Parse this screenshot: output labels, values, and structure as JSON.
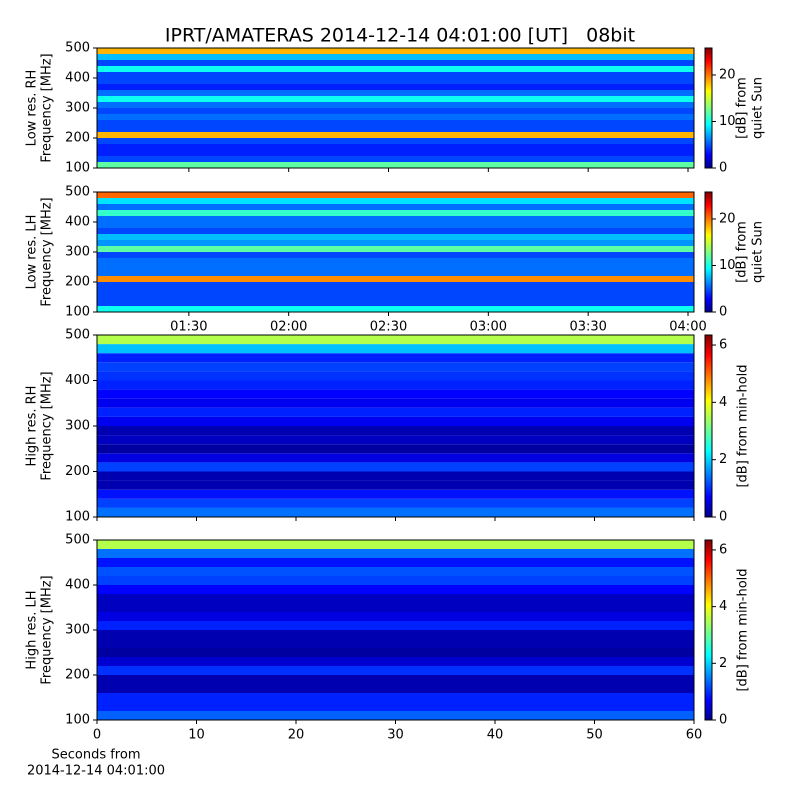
{
  "chart_data": [
    {
      "type": "heatmap",
      "ylabel": [
        "Low res. RH",
        "Frequency [MHz]"
      ],
      "ylim": [
        100,
        500
      ],
      "yticks": [
        100,
        200,
        300,
        400,
        500
      ],
      "ybins": [
        100,
        120,
        140,
        160,
        180,
        200,
        220,
        240,
        260,
        280,
        300,
        320,
        340,
        360,
        380,
        400,
        420,
        440,
        460,
        480,
        500
      ],
      "values": [
        12,
        5,
        4,
        4,
        5,
        18,
        5,
        5,
        6,
        5,
        6,
        10,
        6,
        4,
        5,
        5,
        10,
        5,
        8,
        18
      ],
      "clim": [
        0,
        25.8
      ],
      "cticks": [
        0,
        10,
        20
      ],
      "clabel": [
        "[dB] from",
        "quiet Sun"
      ],
      "title": "IPRT/AMATERAS 2014-12-14 04:01:00 [UT]   08bit"
    },
    {
      "type": "heatmap",
      "ylabel": [
        "Low res. LH",
        "Frequency [MHz]"
      ],
      "ylim": [
        100,
        500
      ],
      "yticks": [
        100,
        200,
        300,
        400,
        500
      ],
      "ybins": [
        100,
        120,
        140,
        160,
        180,
        200,
        220,
        240,
        260,
        280,
        300,
        320,
        340,
        360,
        380,
        400,
        420,
        440,
        460,
        480,
        500
      ],
      "values": [
        10,
        5,
        5,
        5,
        5,
        19,
        6,
        6,
        6,
        5,
        12,
        7,
        8,
        5,
        6,
        6,
        11,
        6,
        9,
        20
      ],
      "xlim": [
        62.4,
        241.8
      ],
      "xticks": [
        {
          "value": 90,
          "label": "01:30"
        },
        {
          "value": 120,
          "label": "02:00"
        },
        {
          "value": 150,
          "label": "02:30"
        },
        {
          "value": 180,
          "label": "03:00"
        },
        {
          "value": 210,
          "label": "03:30"
        },
        {
          "value": 240,
          "label": "04:00"
        }
      ],
      "clim": [
        0,
        25.8
      ],
      "cticks": [
        0,
        10,
        20
      ],
      "clabel": [
        "[dB] from",
        "quiet Sun"
      ]
    },
    {
      "type": "heatmap",
      "ylabel": [
        "High res. RH",
        "Frequency [MHz]"
      ],
      "ylim": [
        100,
        500
      ],
      "yticks": [
        100,
        200,
        300,
        400,
        500
      ],
      "ybins": [
        100,
        120,
        140,
        160,
        180,
        200,
        220,
        240,
        260,
        280,
        300,
        320,
        340,
        360,
        380,
        400,
        420,
        440,
        460,
        480,
        500
      ],
      "values": [
        1.5,
        1.2,
        0.9,
        0.3,
        0.3,
        1.2,
        0.6,
        0.2,
        0.4,
        0.3,
        0.7,
        1.0,
        0.7,
        0.8,
        1.0,
        1.1,
        1.2,
        1.0,
        2.0,
        3.5
      ],
      "clim": [
        0,
        6.35
      ],
      "cticks": [
        0,
        2,
        4,
        6
      ],
      "clabel": [
        "[dB] from min-hold"
      ]
    },
    {
      "type": "heatmap",
      "ylabel": [
        "High res. LH",
        "Frequency [MHz]"
      ],
      "ylim": [
        100,
        500
      ],
      "yticks": [
        100,
        200,
        300,
        400,
        500
      ],
      "ybins": [
        100,
        120,
        140,
        160,
        180,
        200,
        220,
        240,
        260,
        280,
        300,
        320,
        340,
        360,
        380,
        400,
        420,
        440,
        460,
        480,
        500
      ],
      "values": [
        1.4,
        1.0,
        1.0,
        0.3,
        0.3,
        1.1,
        0.5,
        0.2,
        0.3,
        0.3,
        1.0,
        0.6,
        0.4,
        0.4,
        0.8,
        1.2,
        1.3,
        0.9,
        1.5,
        3.5
      ],
      "xlim": [
        0,
        60
      ],
      "xticks": [
        0,
        10,
        20,
        30,
        40,
        50,
        60
      ],
      "xlabel": [
        "Seconds from",
        "2014-12-14 04:01:00"
      ],
      "clim": [
        0,
        6.35
      ],
      "cticks": [
        0,
        2,
        4,
        6
      ],
      "clabel": [
        "[dB] from min-hold"
      ]
    }
  ]
}
